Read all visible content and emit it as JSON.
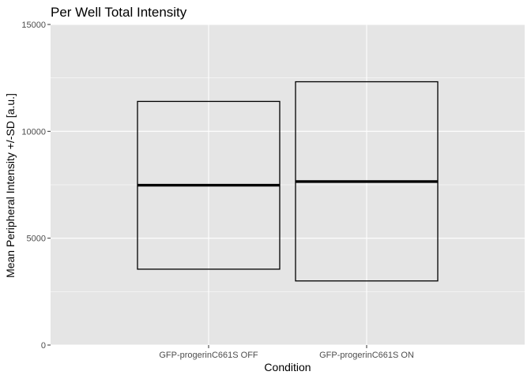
{
  "chart_data": {
    "type": "box",
    "title": "Per Well Total Intensity",
    "xlabel": "Condition",
    "ylabel": "Mean Peripheral Intensity +/-SD [a.u.]",
    "categories": [
      "GFP-progerinC661S OFF",
      "GFP-progerinC661S ON"
    ],
    "boxes": [
      {
        "category": "GFP-progerinC661S OFF",
        "lower": 3550,
        "middle": 7480,
        "upper": 11400
      },
      {
        "category": "GFP-progerinC661S ON",
        "lower": 3000,
        "middle": 7650,
        "upper": 12320
      }
    ],
    "ylim": [
      0,
      15000
    ],
    "yticks": [
      0,
      5000,
      10000,
      15000
    ],
    "grid": true
  },
  "colors": {
    "panel": "#e5e5e5",
    "gridline": "#ffffff",
    "box_stroke": "#000000",
    "box_fill": "none",
    "tick_mark": "#333333"
  }
}
